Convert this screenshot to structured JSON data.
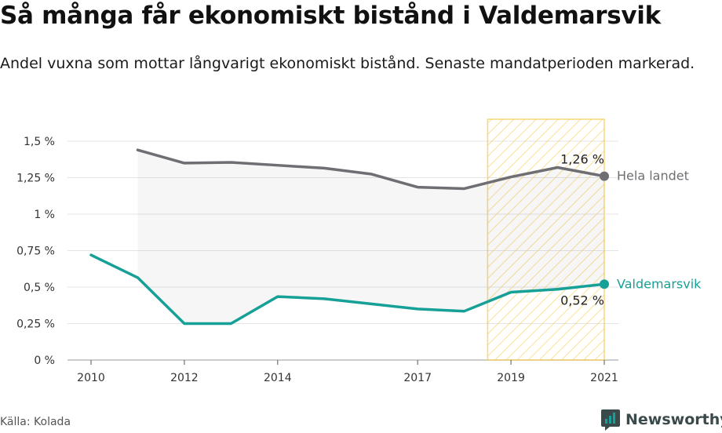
{
  "title": "Så många får ekonomiskt bistånd i Valdemarsvik",
  "subtitle": "Andel vuxna som mottar långvarigt ekonomiskt bistånd. Senaste mandatperioden markerad.",
  "source": "Källa: Kolada",
  "brand": {
    "name": "Newsworthy",
    "logo_icon": "newsworthy-logo-icon"
  },
  "colors": {
    "national": "#6e6e73",
    "local": "#17a097",
    "highlight": "#f5c842"
  },
  "chart_data": {
    "type": "line",
    "title": "Så många får ekonomiskt bistånd i Valdemarsvik",
    "xlabel": "",
    "ylabel": "",
    "x_ticks": [
      "2010",
      "2012",
      "2014",
      "2017",
      "2019",
      "2021"
    ],
    "y_ticks": [
      "0 %",
      "0,25 %",
      "0,5 %",
      "0,75 %",
      "1 %",
      "1,25 %",
      "1,5 %"
    ],
    "ylim": [
      0,
      1.5
    ],
    "xlim": [
      2010,
      2021
    ],
    "highlight_period": [
      2018.5,
      2021
    ],
    "grid": true,
    "series": [
      {
        "name": "Hela landet",
        "color": "#6e6e73",
        "end_label": "1,26 %",
        "points": [
          {
            "x": 2011,
            "y": 1.44
          },
          {
            "x": 2012,
            "y": 1.35
          },
          {
            "x": 2013,
            "y": 1.355
          },
          {
            "x": 2014,
            "y": 1.335
          },
          {
            "x": 2015,
            "y": 1.315
          },
          {
            "x": 2016,
            "y": 1.275
          },
          {
            "x": 2017,
            "y": 1.185
          },
          {
            "x": 2018,
            "y": 1.175
          },
          {
            "x": 2019,
            "y": 1.255
          },
          {
            "x": 2020,
            "y": 1.32
          },
          {
            "x": 2021,
            "y": 1.26
          }
        ]
      },
      {
        "name": "Valdemarsvik",
        "color": "#17a097",
        "end_label": "0,52 %",
        "points": [
          {
            "x": 2010,
            "y": 0.72
          },
          {
            "x": 2011,
            "y": 0.565
          },
          {
            "x": 2012,
            "y": 0.25
          },
          {
            "x": 2013,
            "y": 0.25
          },
          {
            "x": 2014,
            "y": 0.435
          },
          {
            "x": 2015,
            "y": 0.42
          },
          {
            "x": 2016,
            "y": 0.385
          },
          {
            "x": 2017,
            "y": 0.35
          },
          {
            "x": 2018,
            "y": 0.335
          },
          {
            "x": 2019,
            "y": 0.465
          },
          {
            "x": 2020,
            "y": 0.485
          },
          {
            "x": 2021,
            "y": 0.52
          }
        ]
      }
    ]
  }
}
